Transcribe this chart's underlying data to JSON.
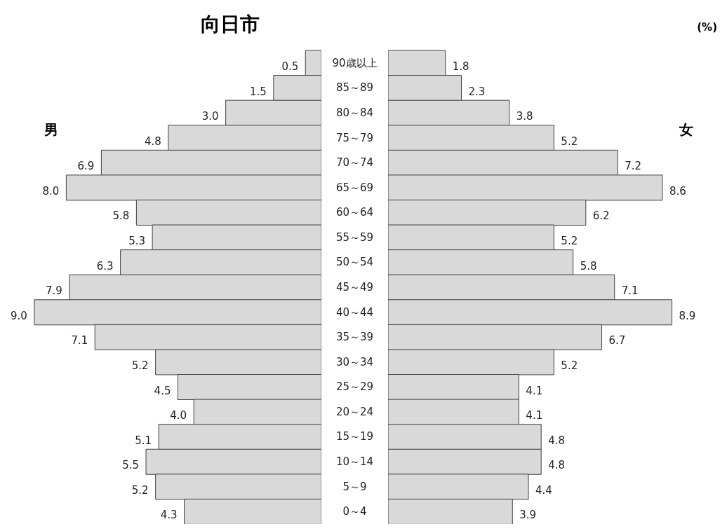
{
  "chart_data": [
    {
      "type": "bar",
      "orientation": "horizontal",
      "title": "向日市",
      "tick_labels": "y",
      "categories": [
        "90歳以上",
        "85～89",
        "80～84",
        "75～79",
        "70～74",
        "65～69",
        "60～64",
        "55～59",
        "50～54",
        "45～49",
        "40～44",
        "35～39",
        "30～34",
        "25～29",
        "20～24",
        "15～19",
        "10～14",
        "5～9",
        "0～4"
      ],
      "series": [
        {
          "name": "男",
          "color": "#d9d9d9",
          "values": [
            0.5,
            1.5,
            3.0,
            4.8,
            6.9,
            8.0,
            5.8,
            5.3,
            6.3,
            7.9,
            9.0,
            7.1,
            5.2,
            4.5,
            4.0,
            5.1,
            5.5,
            5.2,
            4.3
          ],
          "value_labels": [
            "0.5",
            "1.5",
            "3.0",
            "4.8",
            "6.9",
            "8.0",
            "5.8",
            "5.3",
            "6.3",
            "7.9",
            "9.0",
            "7.1",
            "5.2",
            "4.5",
            "4.0",
            "5.1",
            "5.5",
            "5.2",
            "4.3"
          ]
        }
      ]
    },
    {
      "type": "bar",
      "orientation": "horizontal",
      "tick_labels": false,
      "annotations": [
        "(%)"
      ],
      "series": [
        {
          "name": "女",
          "color": "#d9d9d9",
          "values": [
            1.8,
            2.3,
            3.8,
            5.2,
            7.2,
            8.6,
            6.2,
            5.2,
            5.8,
            7.1,
            8.9,
            6.7,
            5.2,
            4.1,
            4.1,
            4.8,
            4.8,
            4.4,
            3.9
          ],
          "value_labels": [
            "1.8",
            "2.3",
            "3.8",
            "5.2",
            "7.2",
            "8.6",
            "6.2",
            "5.2",
            "5.8",
            "7.1",
            "8.9",
            "6.7",
            "5.2",
            "4.1",
            "4.1",
            "4.8",
            "4.8",
            "4.4",
            "3.9"
          ]
        }
      ]
    }
  ]
}
